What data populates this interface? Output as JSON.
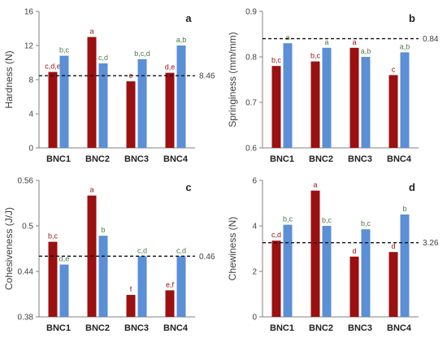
{
  "colors": {
    "series_a": "#9b1010",
    "series_b": "#5b8fd6",
    "text": "#404040",
    "axis": "#808080"
  },
  "chart_data": [
    {
      "panel": "a",
      "type": "bar",
      "ylabel": "Hardness (N)",
      "categories": [
        "BNC1",
        "BNC2",
        "BNC3",
        "BNC4"
      ],
      "ylim": [
        0,
        16
      ],
      "yticks": [
        0,
        4,
        8,
        12,
        16
      ],
      "tick_labels": [
        "0",
        "4",
        "8",
        "12",
        "16"
      ],
      "series": [
        {
          "values": [
            8.9,
            13.0,
            7.8,
            8.8
          ],
          "letters": [
            "c,d,e",
            "a",
            "e",
            "d,e"
          ]
        },
        {
          "values": [
            10.8,
            9.9,
            10.4,
            12.0
          ],
          "letters": [
            "b,c",
            "c,d",
            "b,c,d",
            "a,b"
          ]
        }
      ],
      "reference_line": {
        "value": 8.46,
        "label": "8.46"
      }
    },
    {
      "panel": "b",
      "type": "bar",
      "ylabel": "Springiness (mm/mm)",
      "categories": [
        "BNC1",
        "BNC2",
        "BNC3",
        "BNC4"
      ],
      "ylim": [
        0.6,
        0.9
      ],
      "yticks": [
        0.6,
        0.7,
        0.8,
        0.9
      ],
      "tick_labels": [
        "0.6",
        "0.7",
        "0.8",
        "0.9"
      ],
      "series": [
        {
          "values": [
            0.78,
            0.79,
            0.82,
            0.76
          ],
          "letters": [
            "b,c",
            "b,c",
            "a",
            "c"
          ]
        },
        {
          "values": [
            0.83,
            0.82,
            0.8,
            0.81
          ],
          "letters": [
            "a",
            "a",
            "a,b",
            "a,b"
          ]
        }
      ],
      "reference_line": {
        "value": 0.84,
        "label": "0.84"
      }
    },
    {
      "panel": "c",
      "type": "bar",
      "ylabel": "Cohesiveness (J/J)",
      "categories": [
        "BNC1",
        "BNC2",
        "BNC3",
        "BNC4"
      ],
      "ylim": [
        0.38,
        0.56
      ],
      "yticks": [
        0.38,
        0.44,
        0.5,
        0.56
      ],
      "tick_labels": [
        "0.38",
        "0.44",
        "0.5",
        "0.56"
      ],
      "series": [
        {
          "values": [
            0.479,
            0.54,
            0.409,
            0.415
          ],
          "letters": [
            "b,c",
            "a",
            "f",
            "e,f"
          ]
        },
        {
          "values": [
            0.449,
            0.487,
            0.46,
            0.46
          ],
          "letters": [
            "d,e",
            "b",
            "c,d",
            "c,d"
          ]
        }
      ],
      "reference_line": {
        "value": 0.46,
        "label": "0.46"
      }
    },
    {
      "panel": "d",
      "type": "bar",
      "ylabel": "Chewiness (N)",
      "categories": [
        "BNC1",
        "BNC2",
        "BNC3",
        "BNC4"
      ],
      "ylim": [
        0,
        6
      ],
      "yticks": [
        0,
        2,
        4,
        6
      ],
      "tick_labels": [
        "0",
        "2",
        "4",
        "6"
      ],
      "series": [
        {
          "values": [
            3.35,
            5.55,
            2.65,
            2.85
          ],
          "letters": [
            "c,d",
            "a",
            "d",
            "d"
          ]
        },
        {
          "values": [
            4.05,
            4.0,
            3.85,
            4.5
          ],
          "letters": [
            "b,c",
            "b,c",
            "b,c",
            "b"
          ]
        }
      ],
      "reference_line": {
        "value": 3.26,
        "label": "3.26"
      }
    }
  ]
}
